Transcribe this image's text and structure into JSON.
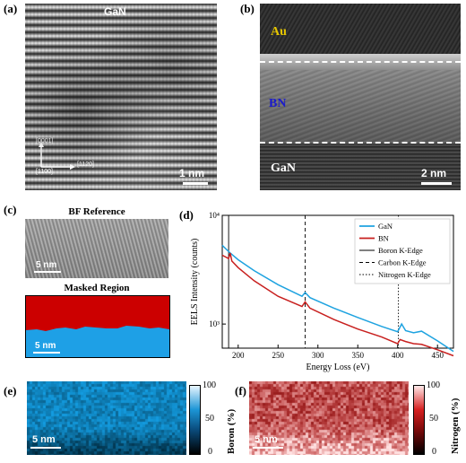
{
  "panels": {
    "a": {
      "label": "(a)",
      "material": "GaN",
      "dir1": "[0001]",
      "dir2": "[1100]",
      "dir3": "[1120]",
      "scale": "1 nm"
    },
    "b": {
      "label": "(b)",
      "layer_au": "Au",
      "layer_bn": "BN",
      "layer_gan": "GaN",
      "scale": "2 nm"
    },
    "c": {
      "label": "(c)",
      "bf_title": "BF Reference",
      "mask_title": "Masked Region",
      "scale1": "5 nm",
      "scale2": "5 nm",
      "mask_top_color": "#cc0000",
      "mask_bottom_color": "#1ea0e6"
    },
    "d": {
      "label": "(d)"
    },
    "e": {
      "label": "(e)",
      "scale": "5 nm",
      "cbar_label": "Boron (%)",
      "cbar_ticks": [
        "100",
        "50",
        "0"
      ]
    },
    "f": {
      "label": "(f)",
      "scale": "5 nm",
      "cbar_label": "Nitrogen (%)",
      "cbar_ticks": [
        "100",
        "50",
        "0"
      ]
    }
  },
  "chart_data": {
    "type": "line",
    "xlabel": "Energy Loss (eV)",
    "ylabel": "EELS Intensity (counts)",
    "yscale": "log",
    "xlim": [
      180,
      470
    ],
    "ylim": [
      600,
      10000
    ],
    "xticks": [
      "200",
      "250",
      "300",
      "350",
      "400",
      "450"
    ],
    "yticks": [
      "10⁴",
      "10³"
    ],
    "series": [
      {
        "name": "GaN",
        "color": "#1fa3e0",
        "x": [
          180,
          190,
          200,
          220,
          250,
          280,
          284,
          290,
          320,
          350,
          380,
          400,
          405,
          410,
          420,
          430,
          450,
          470
        ],
        "y": [
          5300,
          4500,
          3900,
          3100,
          2300,
          1800,
          1950,
          1750,
          1400,
          1150,
          950,
          850,
          1000,
          870,
          830,
          860,
          700,
          560
        ]
      },
      {
        "name": "BN",
        "color": "#c8201f",
        "x": [
          180,
          188,
          190,
          192,
          200,
          220,
          250,
          280,
          284,
          290,
          320,
          350,
          380,
          400,
          403,
          410,
          420,
          430,
          450,
          470
        ],
        "y": [
          4300,
          4000,
          4500,
          3800,
          3300,
          2500,
          1800,
          1450,
          1600,
          1400,
          1100,
          900,
          760,
          660,
          720,
          690,
          660,
          650,
          580,
          510
        ]
      }
    ],
    "vlines": [
      {
        "name": "Boron K-Edge",
        "x": 188,
        "style": "solid"
      },
      {
        "name": "Carbon K-Edge",
        "x": 284,
        "style": "dashed"
      },
      {
        "name": "Nitrogen K-Edge",
        "x": 401,
        "style": "dotted"
      }
    ],
    "legend_position": "top-right"
  }
}
